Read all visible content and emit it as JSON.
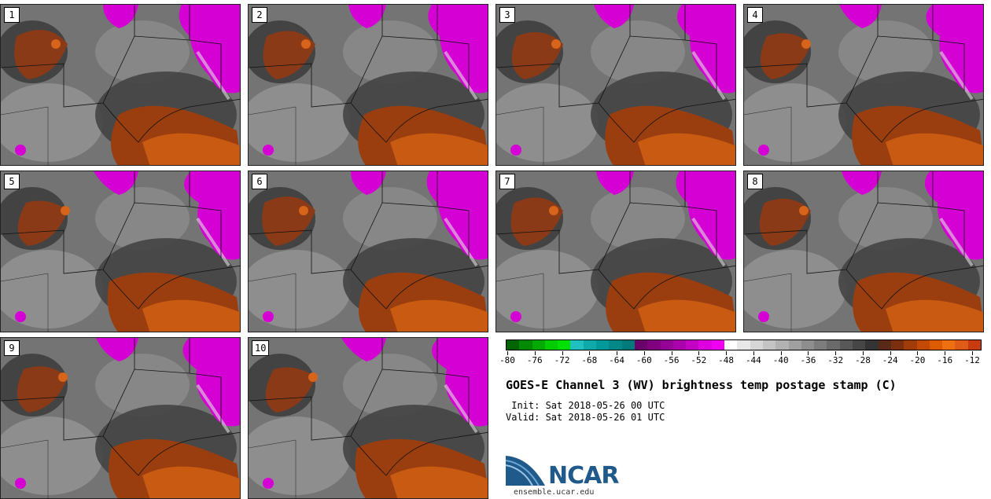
{
  "panels": [
    {
      "label": "1"
    },
    {
      "label": "2"
    },
    {
      "label": "3"
    },
    {
      "label": "4"
    },
    {
      "label": "5"
    },
    {
      "label": "6"
    },
    {
      "label": "7"
    },
    {
      "label": "8"
    },
    {
      "label": "9"
    },
    {
      "label": "10"
    }
  ],
  "colorbar": {
    "colors": [
      "#006400",
      "#008a00",
      "#00aa00",
      "#00cc00",
      "#00e000",
      "#20c0c0",
      "#10a8a8",
      "#009898",
      "#008888",
      "#007a7a",
      "#6a006a",
      "#800080",
      "#960096",
      "#ac00ac",
      "#c400c4",
      "#de00de",
      "#f000f0",
      "#ffffff",
      "#e8e8e8",
      "#d6d6d6",
      "#c4c4c4",
      "#b2b2b2",
      "#a0a0a0",
      "#8e8e8e",
      "#7c7c7c",
      "#6a6a6a",
      "#585858",
      "#464646",
      "#343434",
      "#5a2a18",
      "#7a3010",
      "#a03c08",
      "#c24a04",
      "#dc5a00",
      "#ee7010",
      "#e05a18",
      "#c83a10"
    ],
    "ticks": [
      "-80",
      "-76",
      "-72",
      "-68",
      "-64",
      "-60",
      "-56",
      "-52",
      "-48",
      "-44",
      "-40",
      "-36",
      "-32",
      "-28",
      "-24",
      "-20",
      "-16",
      "-12"
    ]
  },
  "title": "GOES-E Channel 3 (WV) brightness temp postage stamp (C)",
  "init": " Init: Sat 2018-05-26 00 UTC",
  "valid": "Valid: Sat 2018-05-26 01 UTC",
  "logo_text": "NCAR",
  "url": "ensemble.ucar.edu"
}
